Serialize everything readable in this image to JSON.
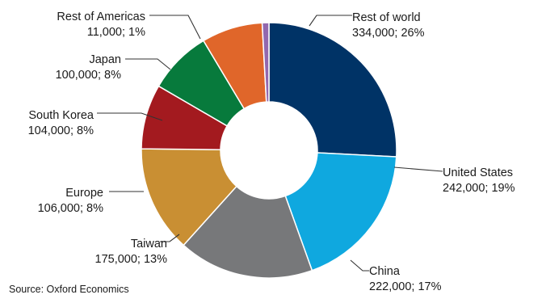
{
  "chart_data": {
    "type": "pie",
    "variant": "donut",
    "title": "",
    "categories": [
      "Rest of world",
      "United States",
      "China",
      "Taiwan",
      "Europe",
      "South Korea",
      "Japan",
      "Rest of Americas"
    ],
    "values": [
      334000,
      242000,
      222000,
      175000,
      106000,
      104000,
      100000,
      11000
    ],
    "percents": [
      26,
      19,
      17,
      13,
      8,
      8,
      8,
      1
    ],
    "value_labels": [
      "334,000; 26%",
      "242,000; 19%",
      "222,000; 17%",
      "175,000; 13%",
      "106,000; 8%",
      "104,000; 8%",
      "100,000; 8%",
      "11,000; 1%"
    ],
    "colors": [
      "#003366",
      "#0fa8df",
      "#77787a",
      "#c98f33",
      "#a31a1f",
      "#077a3c",
      "#e0662a",
      "#9268ae"
    ],
    "start_angle_deg": 0,
    "direction": "clockwise",
    "legend": "none"
  },
  "source": "Source: Oxford Economics"
}
